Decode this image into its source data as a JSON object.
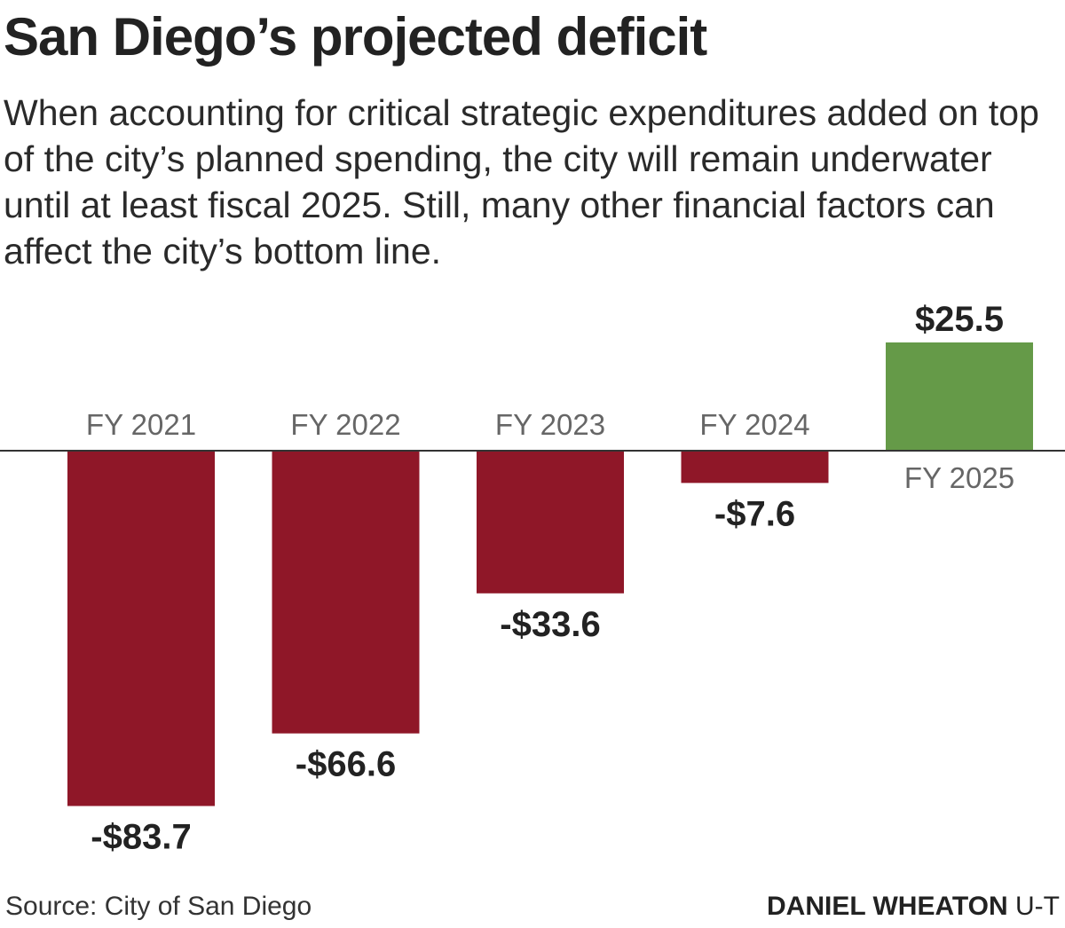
{
  "title": "San Diego’s projected deficit",
  "subtitle": "When accounting for critical strategic expenditures added on top of the city’s planned spending, the city will remain underwater until at least fiscal 2025. Still, many other financial factors can affect the city’s bottom line.",
  "source": "Source: City of San Diego",
  "credit": {
    "name": "DANIEL WHEATON",
    "org": "U-T"
  },
  "colors": {
    "negative": "#8f1728",
    "positive": "#659a48",
    "axis": "#333333",
    "category_label": "#666666"
  },
  "chart_data": {
    "type": "bar",
    "categories": [
      "FY 2021",
      "FY 2022",
      "FY 2023",
      "FY 2024",
      "FY 2025"
    ],
    "values": [
      -83.7,
      -66.6,
      -33.6,
      -7.6,
      25.5
    ],
    "value_labels": [
      "-$83.7",
      "-$66.6",
      "-$33.6",
      "-$7.6",
      "$25.5"
    ],
    "ylim": [
      -83.7,
      25.5
    ],
    "grid": false,
    "legend": "none"
  }
}
